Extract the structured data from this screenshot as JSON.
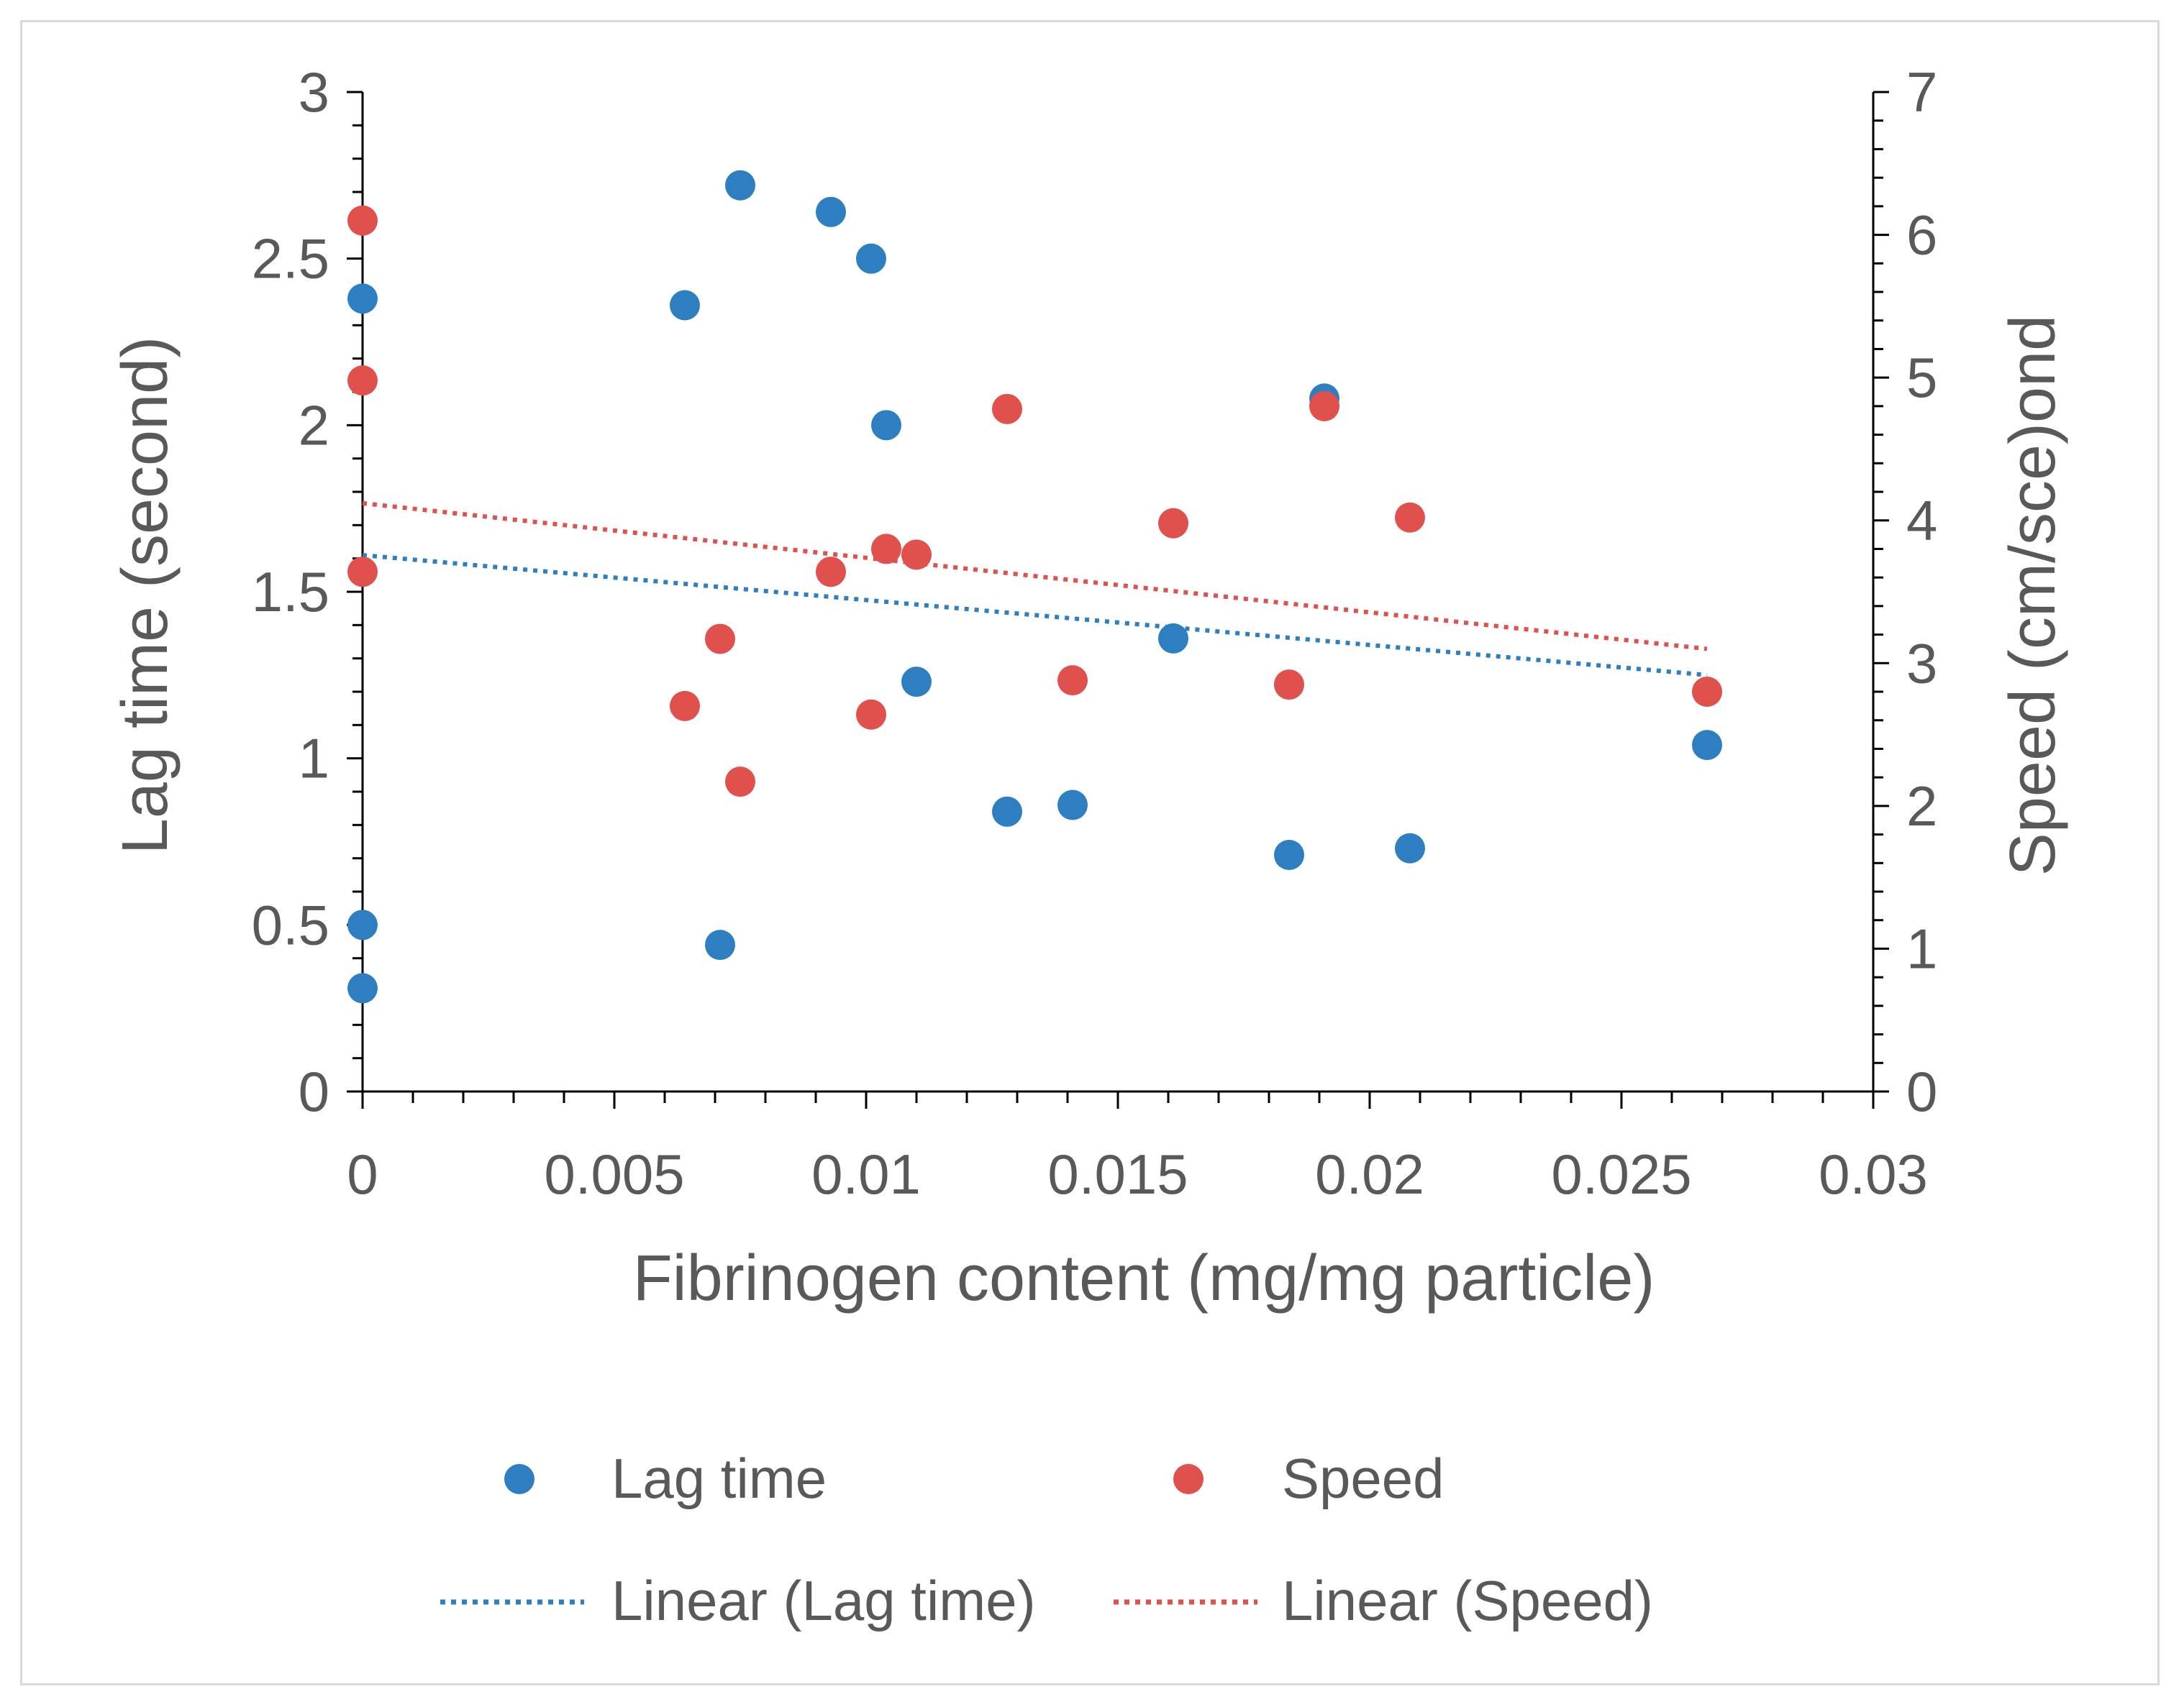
{
  "chart_data": {
    "type": "scatter",
    "title": "",
    "xlabel": "Fibrinogen content (mg/mg particle)",
    "ylabel": "Lag time (second)",
    "y2label": "Speed (cm/sce)ond",
    "xlim": [
      0,
      0.03
    ],
    "ylim": [
      0,
      3
    ],
    "y2lim": [
      0,
      7
    ],
    "xticks": [
      0,
      0.005,
      0.01,
      0.015,
      0.02,
      0.025,
      0.03
    ],
    "xtick_labels": [
      "0",
      "0.005",
      "0.01",
      "0.015",
      "0.02",
      "0.025",
      "0.03"
    ],
    "yticks": [
      0,
      0.5,
      1,
      1.5,
      2,
      2.5,
      3
    ],
    "ytick_labels": [
      "0",
      "0.5",
      "1",
      "1.5",
      "2",
      "2.5",
      "3"
    ],
    "y2ticks": [
      0,
      1,
      2,
      3,
      4,
      5,
      6,
      7
    ],
    "y2tick_labels": [
      "0",
      "1",
      "2",
      "3",
      "4",
      "5",
      "6",
      "7"
    ],
    "grid": false,
    "legend_position": "bottom",
    "series": [
      {
        "name": "Lag time",
        "axis": "left",
        "color": "#2e7fc1",
        "points": [
          [
            0,
            2.38
          ],
          [
            0,
            0.5
          ],
          [
            0,
            0.31
          ],
          [
            0.0064,
            2.36
          ],
          [
            0.0071,
            0.44
          ],
          [
            0.0075,
            2.72
          ],
          [
            0.0093,
            2.64
          ],
          [
            0.0101,
            2.5
          ],
          [
            0.0104,
            2.0
          ],
          [
            0.011,
            1.23
          ],
          [
            0.0128,
            0.84
          ],
          [
            0.0141,
            0.86
          ],
          [
            0.0161,
            1.36
          ],
          [
            0.0184,
            0.71
          ],
          [
            0.0191,
            2.08
          ],
          [
            0.0208,
            0.73
          ],
          [
            0.0267,
            1.04
          ]
        ]
      },
      {
        "name": "Speed",
        "axis": "right",
        "color": "#e0504d",
        "points": [
          [
            0,
            6.1
          ],
          [
            0,
            4.98
          ],
          [
            0,
            3.64
          ],
          [
            0.0064,
            2.7
          ],
          [
            0.0071,
            3.17
          ],
          [
            0.0075,
            2.17
          ],
          [
            0.0093,
            3.64
          ],
          [
            0.0101,
            2.64
          ],
          [
            0.0104,
            3.8
          ],
          [
            0.011,
            3.76
          ],
          [
            0.0128,
            4.78
          ],
          [
            0.0141,
            2.88
          ],
          [
            0.0161,
            3.98
          ],
          [
            0.0184,
            2.85
          ],
          [
            0.0191,
            4.8
          ],
          [
            0.0208,
            4.02
          ],
          [
            0.0267,
            2.8
          ]
        ]
      }
    ],
    "trendlines": [
      {
        "name": "Linear (Lag time)",
        "axis": "left",
        "color": "#2e7fc1",
        "x": [
          0,
          0.0267
        ],
        "y": [
          1.61,
          1.25
        ]
      },
      {
        "name": "Linear (Speed)",
        "axis": "right",
        "color": "#e0504d",
        "x": [
          0,
          0.0267
        ],
        "y": [
          4.12,
          3.1
        ]
      }
    ]
  },
  "legend": {
    "lag_label": "Lag time",
    "speed_label": "Speed",
    "lag_trend_label": "Linear (Lag time)",
    "speed_trend_label": "Linear (Speed)"
  }
}
